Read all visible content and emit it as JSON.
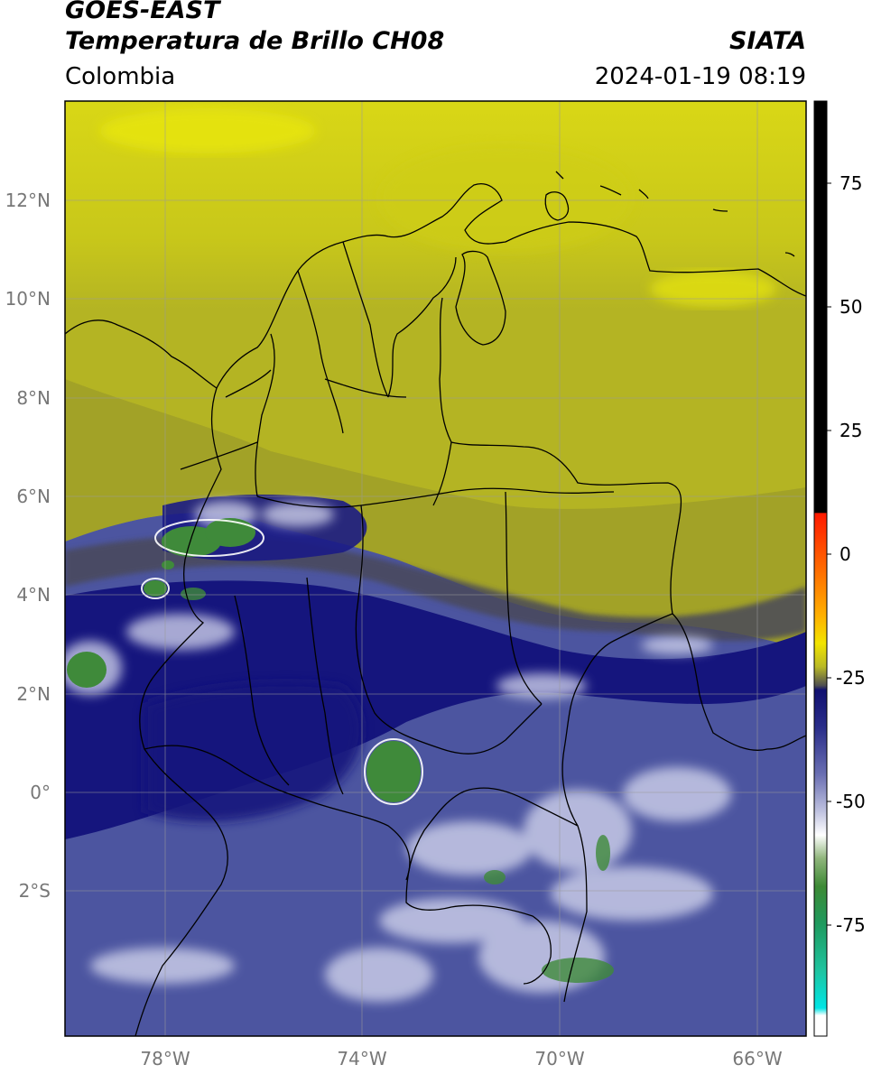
{
  "header": {
    "satellite": "GOES-EAST",
    "product": "Temperatura de Brillo CH08",
    "region": "Colombia",
    "source": "SIATA",
    "datetime": "2024-01-19 08:19"
  },
  "map": {
    "lat_labels": [
      "12°N",
      "10°N",
      "8°N",
      "6°N",
      "4°N",
      "2°N",
      "0°",
      "2°S"
    ],
    "lon_labels": [
      "78°W",
      "74°W",
      "70°W",
      "66°W"
    ],
    "grid": true
  },
  "colorbar": {
    "ticks": [
      "75",
      "50",
      "25",
      "0",
      "-25",
      "-50",
      "-75"
    ],
    "colors": {
      "hot": "#000000",
      "red": "#ff1a00",
      "orange": "#ff9900",
      "yellow": "#e8e000",
      "olive": "#b9b925",
      "gray": "#555555",
      "navy": "#0b0b7a",
      "blue": "#4a4fa0",
      "lavender": "#b4b8d8",
      "white": "#ffffff",
      "green": "#3d8a35",
      "teal": "#1fb08a",
      "cyan": "#00e5e5"
    }
  },
  "colors": {
    "land_yellow": "#c9c818",
    "cloud_deep": "#17177e",
    "cloud_cold": "#4c55a0",
    "border": "#000000"
  }
}
